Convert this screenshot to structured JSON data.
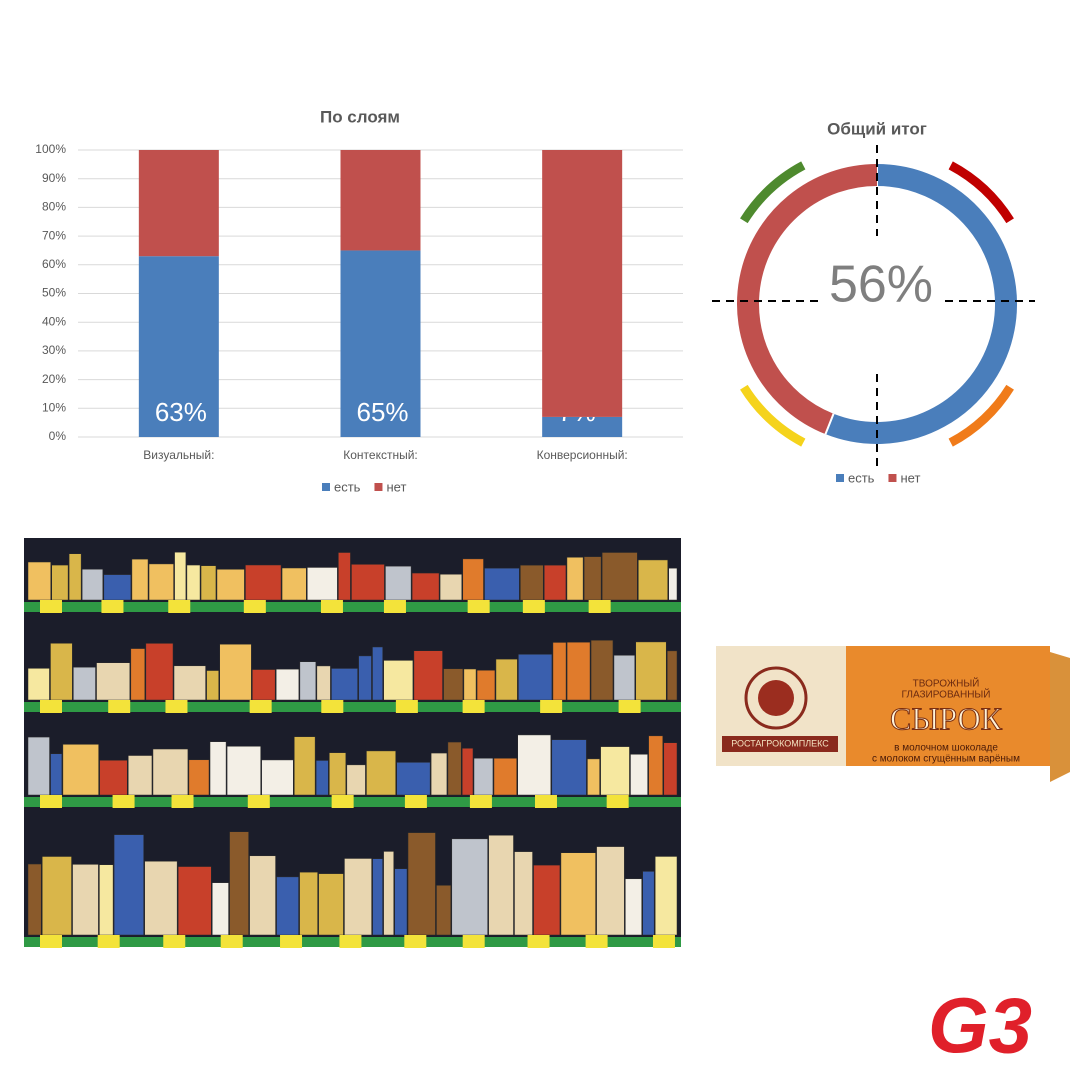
{
  "chart_data": [
    {
      "type": "bar",
      "stacked": true,
      "title": "По слоям",
      "categories": [
        "Визуальный:",
        "Контекстный:",
        "Конверсионный:"
      ],
      "series": [
        {
          "name": "есть",
          "color": "#4a7ebb",
          "values": [
            63,
            65,
            7
          ],
          "value_labels": [
            "63%",
            "65%",
            "7%"
          ]
        },
        {
          "name": "нет",
          "color": "#c0504d",
          "values": [
            37,
            35,
            93
          ]
        }
      ],
      "ylim": [
        0,
        100
      ],
      "yticks": [
        {
          "value": 0,
          "label": "0%"
        },
        {
          "value": 10,
          "label": "10%"
        },
        {
          "value": 20,
          "label": "20%"
        },
        {
          "value": 30,
          "label": "30%"
        },
        {
          "value": 40,
          "label": "40%"
        },
        {
          "value": 50,
          "label": "50%"
        },
        {
          "value": 60,
          "label": "60%"
        },
        {
          "value": 70,
          "label": "70%"
        },
        {
          "value": 80,
          "label": "80%"
        },
        {
          "value": 90,
          "label": "90%"
        },
        {
          "value": 100,
          "label": "100%"
        }
      ],
      "grid": true,
      "legend": "bottom"
    },
    {
      "type": "donut",
      "title": "Общий итог",
      "categories": [
        "есть",
        "нет"
      ],
      "values": [
        56,
        44
      ],
      "value_labels": [
        "56%",
        null
      ],
      "colors": [
        "#4a7ebb",
        "#c0504d"
      ],
      "legend": "bottom"
    }
  ],
  "product_box": {
    "line1": "ТВОРОЖНЫЙ",
    "line2": "ГЛАЗИРОВАННЫЙ",
    "name": "СЫРОК",
    "line3": "в молочном шоколаде",
    "line4": "с молоком сгущённым варёным",
    "brand": "РОСТАГРОКОМПЛЕКС"
  },
  "logo": "G3"
}
